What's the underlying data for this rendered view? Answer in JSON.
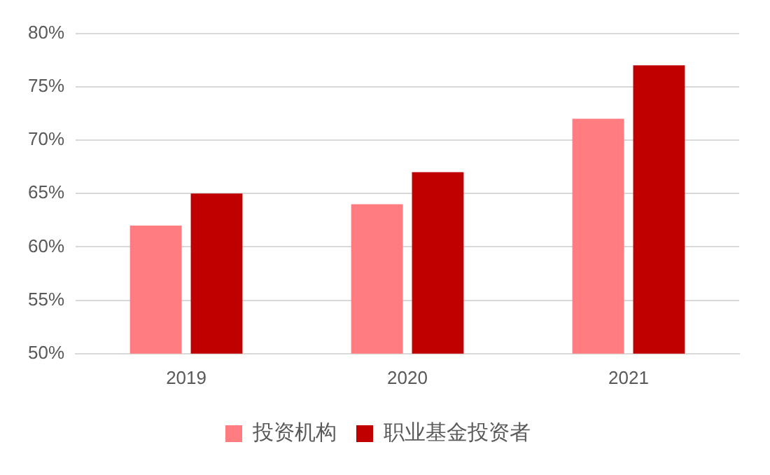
{
  "chart_data": {
    "type": "bar",
    "categories": [
      "2019",
      "2020",
      "2021"
    ],
    "series": [
      {
        "name": "投资机构",
        "color": "#ff7c80",
        "values": [
          62,
          64,
          72
        ]
      },
      {
        "name": "职业基金投资者",
        "color": "#c00000",
        "values": [
          65,
          67,
          77
        ]
      }
    ],
    "ylim": [
      50,
      80
    ],
    "yticks": [
      {
        "value": 50,
        "label": "50%"
      },
      {
        "value": 55,
        "label": "55%"
      },
      {
        "value": 60,
        "label": "60%"
      },
      {
        "value": 65,
        "label": "65%"
      },
      {
        "value": 70,
        "label": "70%"
      },
      {
        "value": 75,
        "label": "75%"
      },
      {
        "value": 80,
        "label": "80%"
      }
    ],
    "grid": "y",
    "legend": "bottom"
  }
}
